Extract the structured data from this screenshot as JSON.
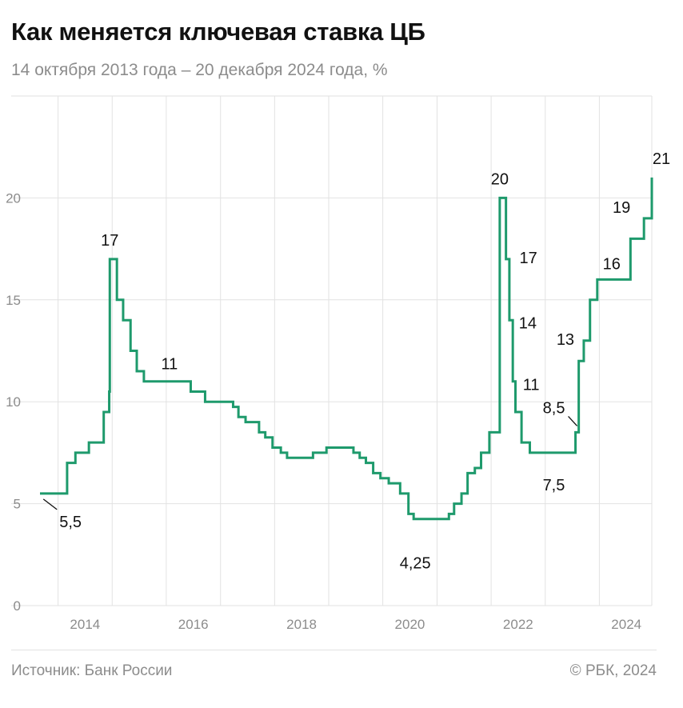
{
  "header": {
    "title": "Как меняется ключевая ставка ЦБ",
    "subtitle": "14 октября 2013 года – 20 декабря 2024 года, %"
  },
  "footer": {
    "source": "Источник: Банк России",
    "copyright": "© РБК, 2024"
  },
  "colors": {
    "line": "#1e9a6c",
    "grid": "#e2e2e2",
    "tick": "#8c8c8c"
  },
  "chart_data": {
    "type": "line",
    "step": true,
    "title": "Как меняется ключевая ставка ЦБ",
    "subtitle": "14 октября 2013 года – 20 декабря 2024 года, %",
    "xlabel": "",
    "ylabel": "",
    "xlim": [
      "2013-09-01",
      "2024-12-20"
    ],
    "ylim": [
      0,
      25
    ],
    "grid": true,
    "x_ticks": [
      "2014",
      "2016",
      "2018",
      "2020",
      "2022",
      "2024"
    ],
    "y_ticks": [
      0,
      5,
      10,
      15,
      20
    ],
    "series": [
      {
        "name": "",
        "x": [
          "2013-09-13",
          "2014-03-03",
          "2014-04-28",
          "2014-07-28",
          "2014-11-05",
          "2014-12-12",
          "2014-12-16",
          "2015-02-02",
          "2015-03-16",
          "2015-05-05",
          "2015-06-16",
          "2015-08-03",
          "2016-06-14",
          "2016-09-19",
          "2017-03-27",
          "2017-05-02",
          "2017-06-19",
          "2017-09-18",
          "2017-10-30",
          "2017-12-18",
          "2018-02-12",
          "2018-03-26",
          "2018-09-17",
          "2018-12-17",
          "2019-06-17",
          "2019-07-29",
          "2019-09-09",
          "2019-10-28",
          "2019-12-16",
          "2020-02-10",
          "2020-04-27",
          "2020-06-22",
          "2020-07-27",
          "2021-03-22",
          "2021-04-26",
          "2021-06-15",
          "2021-07-26",
          "2021-09-13",
          "2021-10-25",
          "2021-12-20",
          "2022-02-28",
          "2022-04-11",
          "2022-05-04",
          "2022-05-27",
          "2022-06-14",
          "2022-07-25",
          "2022-09-19",
          "2023-07-24",
          "2023-08-15",
          "2023-09-18",
          "2023-10-30",
          "2023-12-18",
          "2024-07-29",
          "2024-10-28",
          "2024-12-20"
        ],
        "y": [
          5.5,
          7,
          7.5,
          8,
          9.5,
          10.5,
          17,
          15,
          14,
          12.5,
          11.5,
          11,
          10.5,
          10,
          9.75,
          9.25,
          9,
          8.5,
          8.25,
          7.75,
          7.5,
          7.25,
          7.5,
          7.75,
          7.5,
          7.25,
          7,
          6.5,
          6.25,
          6,
          5.5,
          4.5,
          4.25,
          4.5,
          5,
          5.5,
          6.5,
          6.75,
          7.5,
          8.5,
          20,
          17,
          14,
          11,
          9.5,
          8,
          7.5,
          8.5,
          12,
          13,
          15,
          16,
          18,
          19,
          21
        ]
      }
    ],
    "annotations": [
      {
        "text": "5,5",
        "x": "2013-09-13",
        "y": 5.5
      },
      {
        "text": "17",
        "x": "2014-12-16",
        "y": 17
      },
      {
        "text": "11",
        "x": "2015-08-03",
        "y": 11
      },
      {
        "text": "4,25",
        "x": "2020-07-27",
        "y": 4.25
      },
      {
        "text": "20",
        "x": "2022-02-28",
        "y": 20
      },
      {
        "text": "17",
        "x": "2022-04-11",
        "y": 17
      },
      {
        "text": "14",
        "x": "2022-05-04",
        "y": 14
      },
      {
        "text": "11",
        "x": "2022-05-27",
        "y": 11
      },
      {
        "text": "7,5",
        "x": "2022-09-19",
        "y": 7.5
      },
      {
        "text": "8,5",
        "x": "2023-07-24",
        "y": 8.5
      },
      {
        "text": "13",
        "x": "2023-09-18",
        "y": 13
      },
      {
        "text": "16",
        "x": "2023-12-18",
        "y": 16
      },
      {
        "text": "19",
        "x": "2024-10-28",
        "y": 19
      },
      {
        "text": "21",
        "x": "2024-12-20",
        "y": 21
      }
    ]
  }
}
